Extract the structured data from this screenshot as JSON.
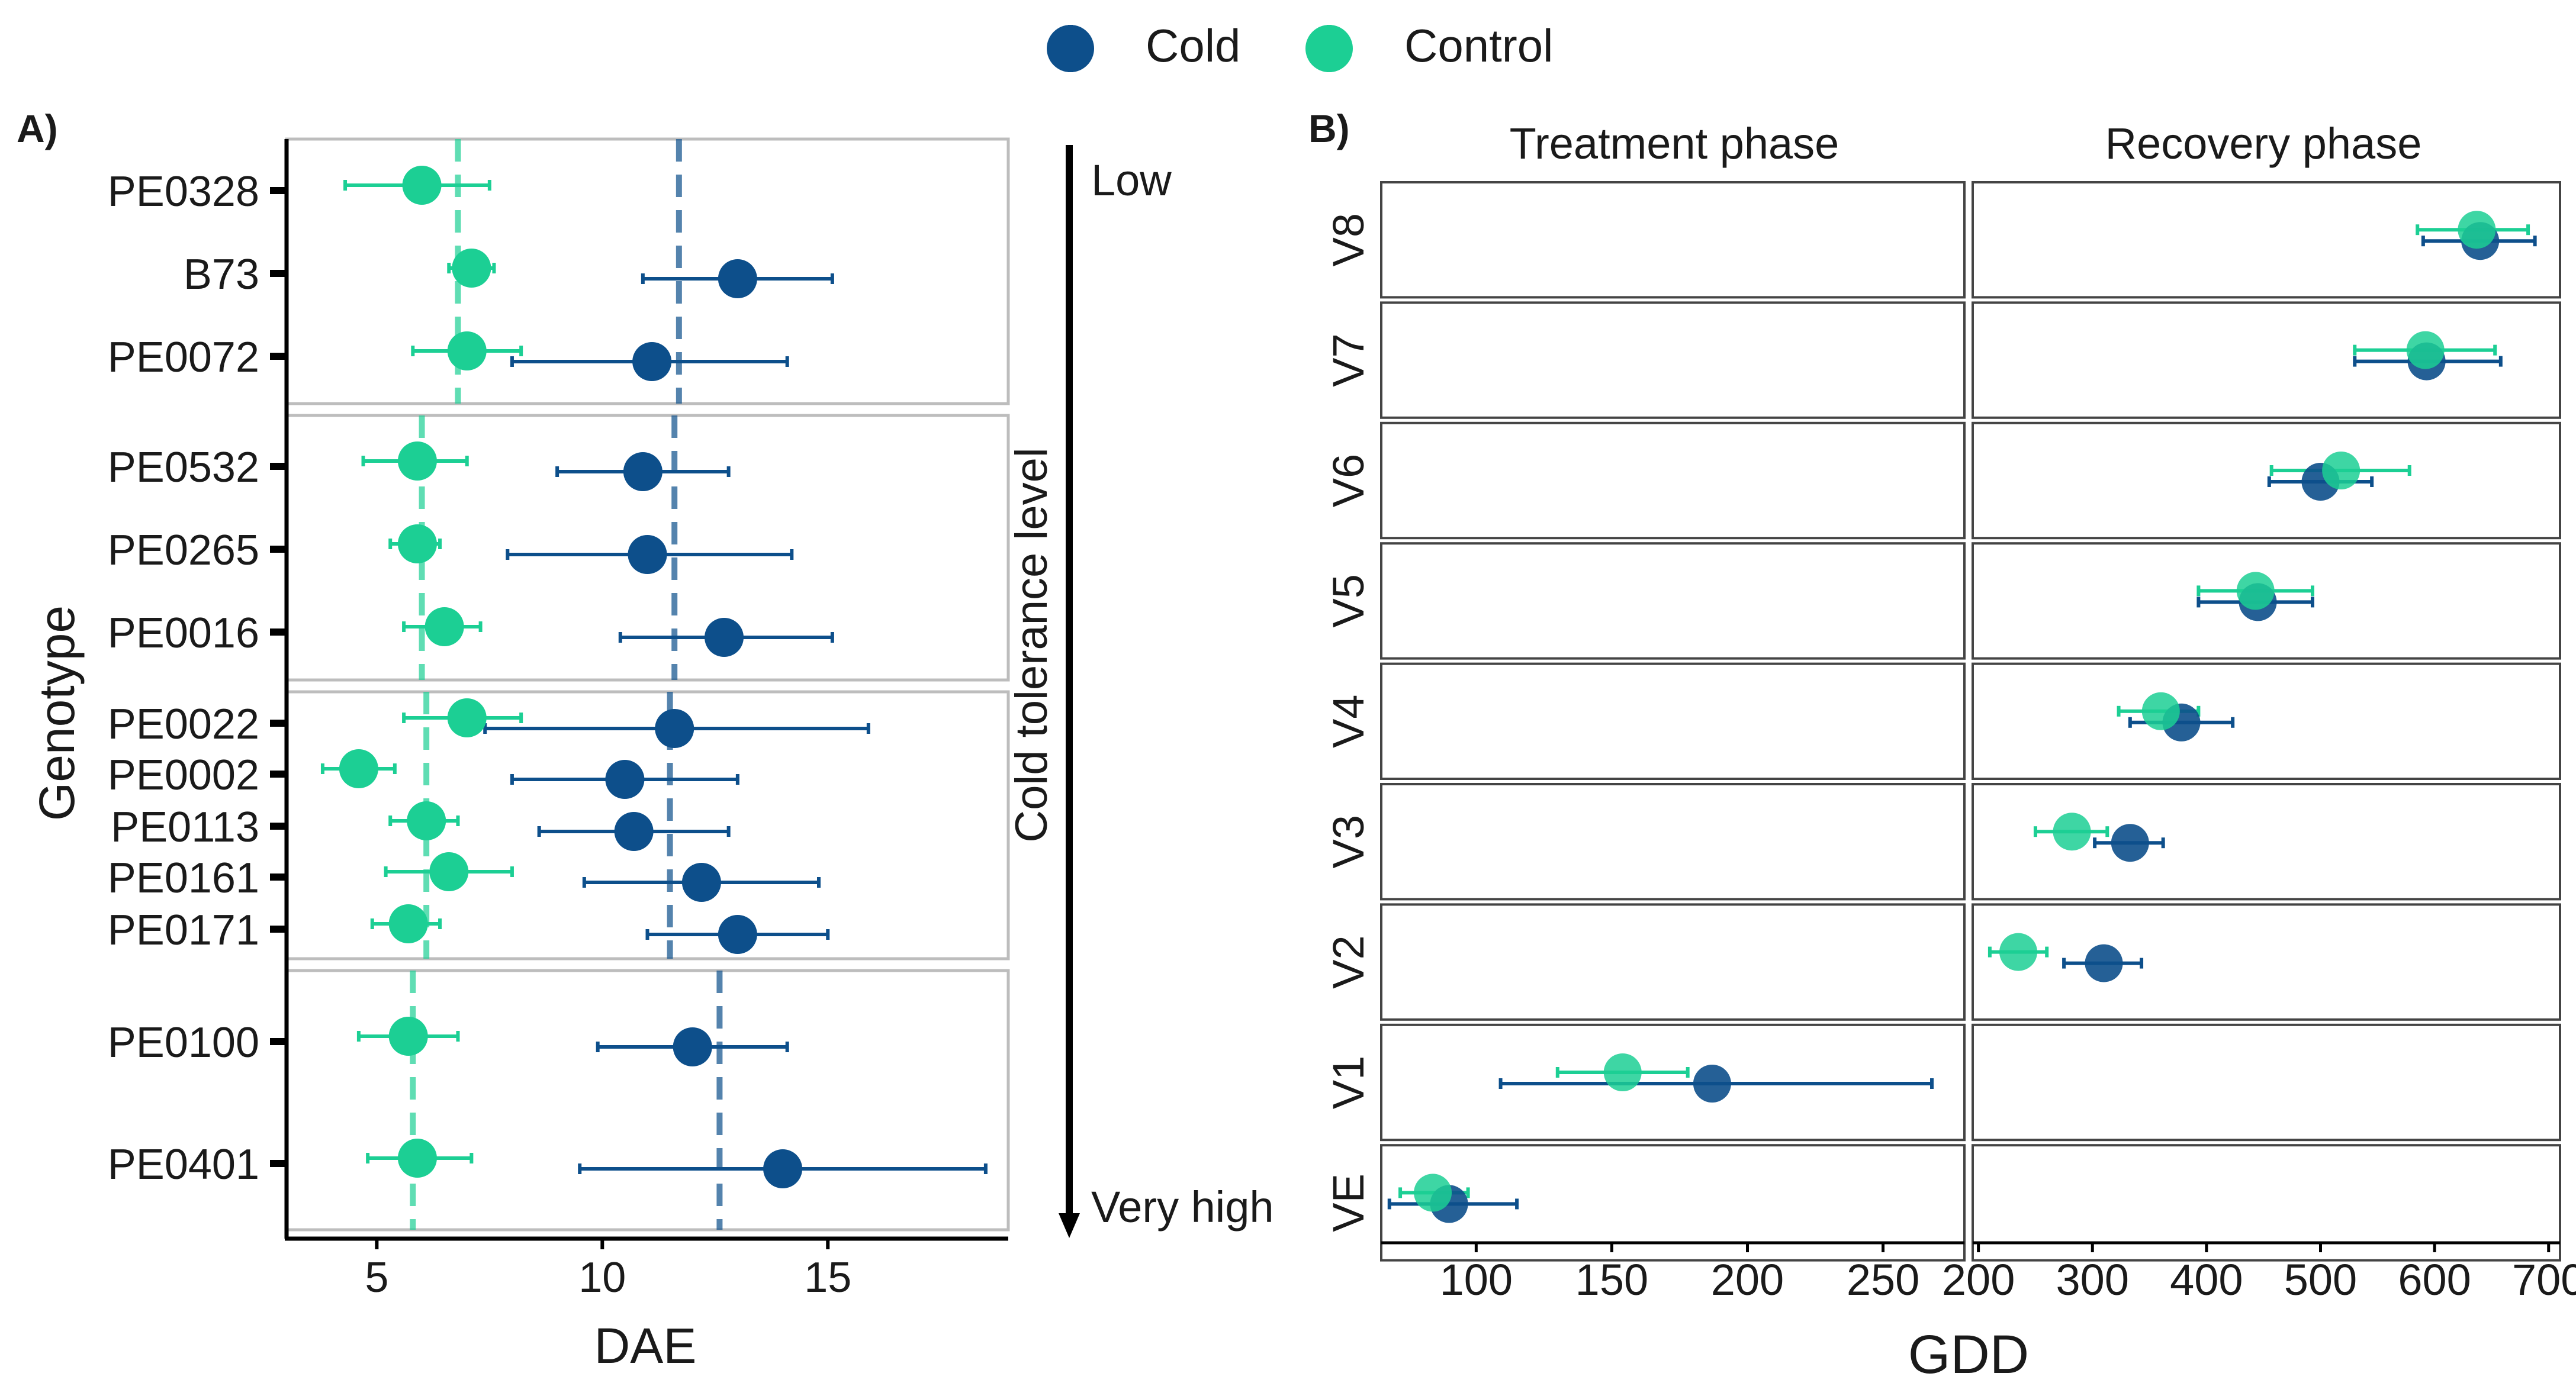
{
  "colors": {
    "cold": "#0d4f8b",
    "control": "#1ccf94",
    "frame": "#bdbdbd",
    "axis": "#000000"
  },
  "legend": {
    "cold_label": "Cold",
    "control_label": "Control"
  },
  "panelA": {
    "tag": "A)",
    "xlabel": "DAE",
    "ylabel": "Genotype",
    "arrow_label": "Cold tolerance level",
    "arrow_top": "Low",
    "arrow_bottom": "Very high"
  },
  "panelB": {
    "tag": "B)",
    "xlabel": "GDD",
    "facet_left": "Treatment phase",
    "facet_right": "Recovery phase"
  },
  "chart_data": [
    {
      "type": "scatter",
      "subtype": "dot-and-whisker",
      "panel": "A",
      "xlabel": "DAE",
      "ylabel": "Genotype",
      "xlim": [
        3,
        19
      ],
      "xticks": [
        5,
        10,
        15
      ],
      "series_names": [
        "Cold",
        "Control"
      ],
      "groups": [
        {
          "cold_mean_line": 11.7,
          "control_mean_line": 6.8,
          "rows": [
            {
              "label": "PE0328",
              "cold": null,
              "control": {
                "x": 6.0,
                "lo": 4.3,
                "hi": 7.5
              }
            },
            {
              "label": "B73",
              "cold": {
                "x": 13.0,
                "lo": 10.9,
                "hi": 15.1
              },
              "control": {
                "x": 7.1,
                "lo": 6.6,
                "hi": 7.6
              }
            },
            {
              "label": "PE0072",
              "cold": {
                "x": 11.1,
                "lo": 8.0,
                "hi": 14.1
              },
              "control": {
                "x": 7.0,
                "lo": 5.8,
                "hi": 8.2
              }
            }
          ]
        },
        {
          "cold_mean_line": 11.6,
          "control_mean_line": 6.0,
          "rows": [
            {
              "label": "PE0532",
              "cold": {
                "x": 10.9,
                "lo": 9.0,
                "hi": 12.8
              },
              "control": {
                "x": 5.9,
                "lo": 4.7,
                "hi": 7.0
              }
            },
            {
              "label": "PE0265",
              "cold": {
                "x": 11.0,
                "lo": 7.9,
                "hi": 14.2
              },
              "control": {
                "x": 5.9,
                "lo": 5.3,
                "hi": 6.4
              }
            },
            {
              "label": "PE0016",
              "cold": {
                "x": 12.7,
                "lo": 10.4,
                "hi": 15.1
              },
              "control": {
                "x": 6.5,
                "lo": 5.6,
                "hi": 7.3
              }
            }
          ]
        },
        {
          "cold_mean_line": 11.5,
          "control_mean_line": 6.1,
          "rows": [
            {
              "label": "PE0022",
              "cold": {
                "x": 11.6,
                "lo": 7.4,
                "hi": 15.9
              },
              "control": {
                "x": 7.0,
                "lo": 5.6,
                "hi": 8.2
              }
            },
            {
              "label": "PE0002",
              "cold": {
                "x": 10.5,
                "lo": 8.0,
                "hi": 13.0
              },
              "control": {
                "x": 4.6,
                "lo": 3.8,
                "hi": 5.4
              }
            },
            {
              "label": "PE0113",
              "cold": {
                "x": 10.7,
                "lo": 8.6,
                "hi": 12.8
              },
              "control": {
                "x": 6.1,
                "lo": 5.3,
                "hi": 6.8
              }
            },
            {
              "label": "PE0161",
              "cold": {
                "x": 12.2,
                "lo": 9.6,
                "hi": 14.8
              },
              "control": {
                "x": 6.6,
                "lo": 5.2,
                "hi": 8.0
              }
            },
            {
              "label": "PE0171",
              "cold": {
                "x": 13.0,
                "lo": 11.0,
                "hi": 15.0
              },
              "control": {
                "x": 5.7,
                "lo": 4.9,
                "hi": 6.4
              }
            }
          ]
        },
        {
          "cold_mean_line": 12.6,
          "control_mean_line": 5.8,
          "rows": [
            {
              "label": "PE0100",
              "cold": {
                "x": 12.0,
                "lo": 9.9,
                "hi": 14.1
              },
              "control": {
                "x": 5.7,
                "lo": 4.6,
                "hi": 6.8
              }
            },
            {
              "label": "PE0401",
              "cold": {
                "x": 14.0,
                "lo": 9.5,
                "hi": 18.5
              },
              "control": {
                "x": 5.9,
                "lo": 4.8,
                "hi": 7.1
              }
            }
          ]
        }
      ]
    },
    {
      "type": "scatter",
      "subtype": "dot-and-whisker",
      "panel": "B",
      "xlabel": "GDD",
      "series_names": [
        "Cold",
        "Control"
      ],
      "facets": [
        {
          "title": "Treatment phase",
          "xlim": [
            65,
            280
          ],
          "xticks": [
            100,
            150,
            200,
            250
          ]
        },
        {
          "title": "Recovery phase",
          "xlim": [
            195,
            710
          ],
          "xticks": [
            200,
            300,
            400,
            500,
            600,
            700
          ]
        }
      ],
      "rows": [
        {
          "label": "V8",
          "facet": 1,
          "cold": {
            "x": 640,
            "lo": 590,
            "hi": 688
          },
          "control": {
            "x": 637,
            "lo": 585,
            "hi": 682
          }
        },
        {
          "label": "V7",
          "facet": 1,
          "cold": {
            "x": 593,
            "lo": 530,
            "hi": 658
          },
          "control": {
            "x": 592,
            "lo": 530,
            "hi": 653
          }
        },
        {
          "label": "V6",
          "facet": 1,
          "cold": {
            "x": 500,
            "lo": 455,
            "hi": 545
          },
          "control": {
            "x": 518,
            "lo": 457,
            "hi": 578
          }
        },
        {
          "label": "V5",
          "facet": 1,
          "cold": {
            "x": 445,
            "lo": 393,
            "hi": 493
          },
          "control": {
            "x": 443,
            "lo": 393,
            "hi": 493
          }
        },
        {
          "label": "V4",
          "facet": 1,
          "cold": {
            "x": 378,
            "lo": 333,
            "hi": 423
          },
          "control": {
            "x": 360,
            "lo": 323,
            "hi": 393
          }
        },
        {
          "label": "V3",
          "facet": 1,
          "cold": {
            "x": 333,
            "lo": 302,
            "hi": 362
          },
          "control": {
            "x": 282,
            "lo": 250,
            "hi": 313
          }
        },
        {
          "label": "V2",
          "facet": 1,
          "cold": {
            "x": 310,
            "lo": 275,
            "hi": 343
          },
          "control": {
            "x": 235,
            "lo": 210,
            "hi": 260
          }
        },
        {
          "label": "V1",
          "facet": 0,
          "cold": {
            "x": 187,
            "lo": 109,
            "hi": 268
          },
          "control": {
            "x": 154,
            "lo": 130,
            "hi": 178
          }
        },
        {
          "label": "VE",
          "facet": 0,
          "cold": {
            "x": 90,
            "lo": 68,
            "hi": 115
          },
          "control": {
            "x": 84,
            "lo": 72,
            "hi": 97
          }
        }
      ]
    }
  ]
}
